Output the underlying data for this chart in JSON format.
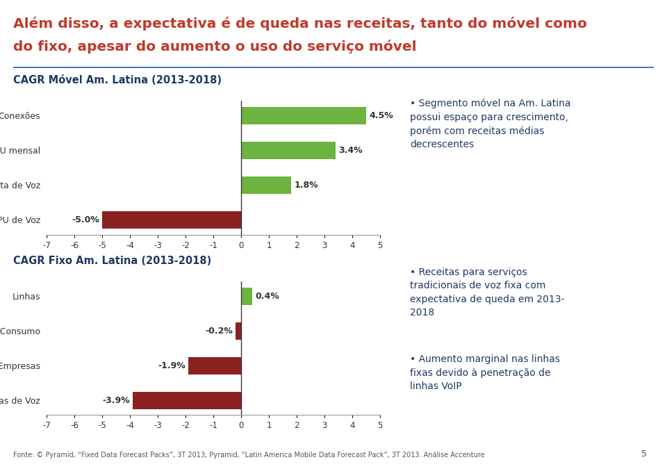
{
  "title_line1": "Além disso, a expectativa é de queda nas receitas, tanto do móvel como",
  "title_line2": "do fixo, apesar do aumento o uso do serviço móvel",
  "title_main_color": "#C0392B",
  "bg_color": "#FFFFFF",
  "chart1_title": "CAGR Móvel Am. Latina (2013-2018)",
  "chart1_categories": [
    "Conexões",
    "MOU mensal",
    "Receita de Voz",
    "ARPU de Voz"
  ],
  "chart1_values": [
    4.5,
    3.4,
    1.8,
    -5.0
  ],
  "chart1_labels": [
    "4.5%",
    "3.4%",
    "1.8%",
    "-5.0%"
  ],
  "chart2_title": "CAGR Fixo Am. Latina (2013-2018)",
  "chart2_categories": [
    "Linhas",
    "MOU Consumo",
    "MOU Empresas",
    "Receitas de Voz"
  ],
  "chart2_values": [
    0.4,
    -0.2,
    -1.9,
    -3.9
  ],
  "chart2_labels": [
    "0.4%",
    "-0.2%",
    "-1.9%",
    "-3.9%"
  ],
  "color_positive": "#6DB33F",
  "color_negative": "#8B2222",
  "xlim": [
    -7,
    5
  ],
  "xticks": [
    -7,
    -6,
    -5,
    -4,
    -3,
    -2,
    -1,
    0,
    1,
    2,
    3,
    4,
    5
  ],
  "xtick_labels": [
    "-7",
    "-6",
    "-5",
    "-4",
    "-3",
    "-2",
    "-1",
    "0",
    "1",
    "2",
    "3",
    "4",
    "5"
  ],
  "chart1_comment": "Segmento móvel na Am. Latina\npossui espaço para crescimento,\nporém com receitas médias\ndecrescentes",
  "chart2_comment1": "Receitas para serviços\ntradicionais de voz fixa com\nexpectativa de queda em 2013-\n2018",
  "chart2_comment2": "Aumento marginal nas linhas\nfixas devido à penetração de\nlinhas VoIP",
  "footer": "Fonte: © Pyramid, “Fixed Data Forecast Packs”, 3T 2013; Pyramid, “Latin America Mobile Data Forecast Pack”, 3T 2013. Análise Accenture",
  "page_number": "5",
  "separator_color": "#4472C4",
  "title_color_dark": "#1F3864",
  "bar_height": 0.5
}
